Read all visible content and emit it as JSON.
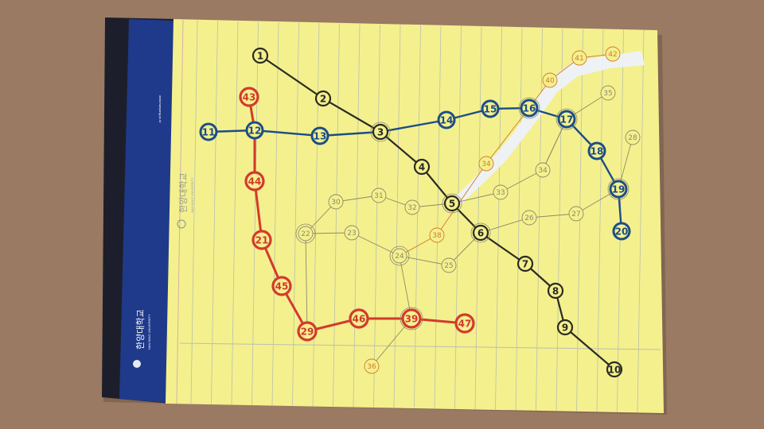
{
  "notebook": {
    "brand": "한양대학교",
    "brand_english": "HANYANG UNIVERSITY",
    "website": "www.hanyang.ac.kr"
  },
  "colors": {
    "desk": "#9a7a63",
    "paper": "#f4f08e",
    "rule": "#b9bfae",
    "binding_dark": "#1c1f2b",
    "binding_blue": "#1f3a8a",
    "black_line": "#2b2b22",
    "blue_line": "#1c4d86",
    "red_line": "#d23a2e",
    "pencil_line": "#8c8a6a",
    "orange_line": "#d27a2a",
    "highlight": "#eef2ff"
  },
  "stations": [
    {
      "id": "1",
      "label": "1"
    },
    {
      "id": "2",
      "label": "2"
    },
    {
      "id": "3",
      "label": "3"
    },
    {
      "id": "4",
      "label": "4"
    },
    {
      "id": "5",
      "label": "5"
    },
    {
      "id": "6",
      "label": "6"
    },
    {
      "id": "7",
      "label": "7"
    },
    {
      "id": "8",
      "label": "8"
    },
    {
      "id": "9",
      "label": "9"
    },
    {
      "id": "10",
      "label": "10"
    },
    {
      "id": "11",
      "label": "11"
    },
    {
      "id": "12",
      "label": "12"
    },
    {
      "id": "13",
      "label": "13"
    },
    {
      "id": "14",
      "label": "14"
    },
    {
      "id": "15",
      "label": "15"
    },
    {
      "id": "16",
      "label": "16"
    },
    {
      "id": "17",
      "label": "17"
    },
    {
      "id": "18",
      "label": "18"
    },
    {
      "id": "19",
      "label": "19"
    },
    {
      "id": "20",
      "label": "20"
    },
    {
      "id": "43",
      "label": "43"
    },
    {
      "id": "44",
      "label": "44"
    },
    {
      "id": "21",
      "label": "21"
    },
    {
      "id": "45",
      "label": "45"
    },
    {
      "id": "29",
      "label": "29"
    },
    {
      "id": "46",
      "label": "46"
    },
    {
      "id": "39",
      "label": "39"
    },
    {
      "id": "47",
      "label": "47"
    },
    {
      "id": "22",
      "label": "22"
    },
    {
      "id": "23",
      "label": "23"
    },
    {
      "id": "24",
      "label": "24"
    },
    {
      "id": "25",
      "label": "25"
    },
    {
      "id": "26",
      "label": "26"
    },
    {
      "id": "27",
      "label": "27"
    },
    {
      "id": "28",
      "label": "28"
    },
    {
      "id": "30",
      "label": "30"
    },
    {
      "id": "31",
      "label": "31"
    },
    {
      "id": "32",
      "label": "32"
    },
    {
      "id": "33",
      "label": "33"
    },
    {
      "id": "34a",
      "label": "34"
    },
    {
      "id": "34b",
      "label": "34"
    },
    {
      "id": "35",
      "label": "35"
    },
    {
      "id": "36",
      "label": "36"
    },
    {
      "id": "38",
      "label": "38"
    },
    {
      "id": "40",
      "label": "40"
    },
    {
      "id": "41",
      "label": "41"
    },
    {
      "id": "42",
      "label": "42"
    }
  ],
  "lines": [
    {
      "style": "black",
      "stops": [
        "1",
        "2",
        "3",
        "4",
        "5",
        "6",
        "7",
        "8",
        "9",
        "10"
      ]
    },
    {
      "style": "blue",
      "stops": [
        "11",
        "12",
        "13",
        "3",
        "14",
        "15",
        "16",
        "17",
        "18",
        "19",
        "20"
      ]
    },
    {
      "style": "red",
      "stops": [
        "43",
        "12",
        "44",
        "21",
        "45",
        "29",
        "46",
        "39",
        "47"
      ]
    },
    {
      "style": "pencil",
      "stops": [
        "22",
        "30",
        "31",
        "32",
        "5",
        "33",
        "34b",
        "17"
      ]
    },
    {
      "style": "pencil",
      "stops": [
        "22",
        "23",
        "24",
        "25",
        "6",
        "26",
        "27",
        "19",
        "28"
      ]
    },
    {
      "style": "pencil",
      "stops": [
        "22",
        "29"
      ]
    },
    {
      "style": "pencil",
      "stops": [
        "24",
        "39",
        "36"
      ]
    },
    {
      "style": "pencil",
      "stops": [
        "34b",
        "17",
        "35"
      ]
    },
    {
      "style": "orange",
      "stops": [
        "24",
        "38",
        "34a",
        "16",
        "40",
        "41",
        "42"
      ]
    }
  ]
}
